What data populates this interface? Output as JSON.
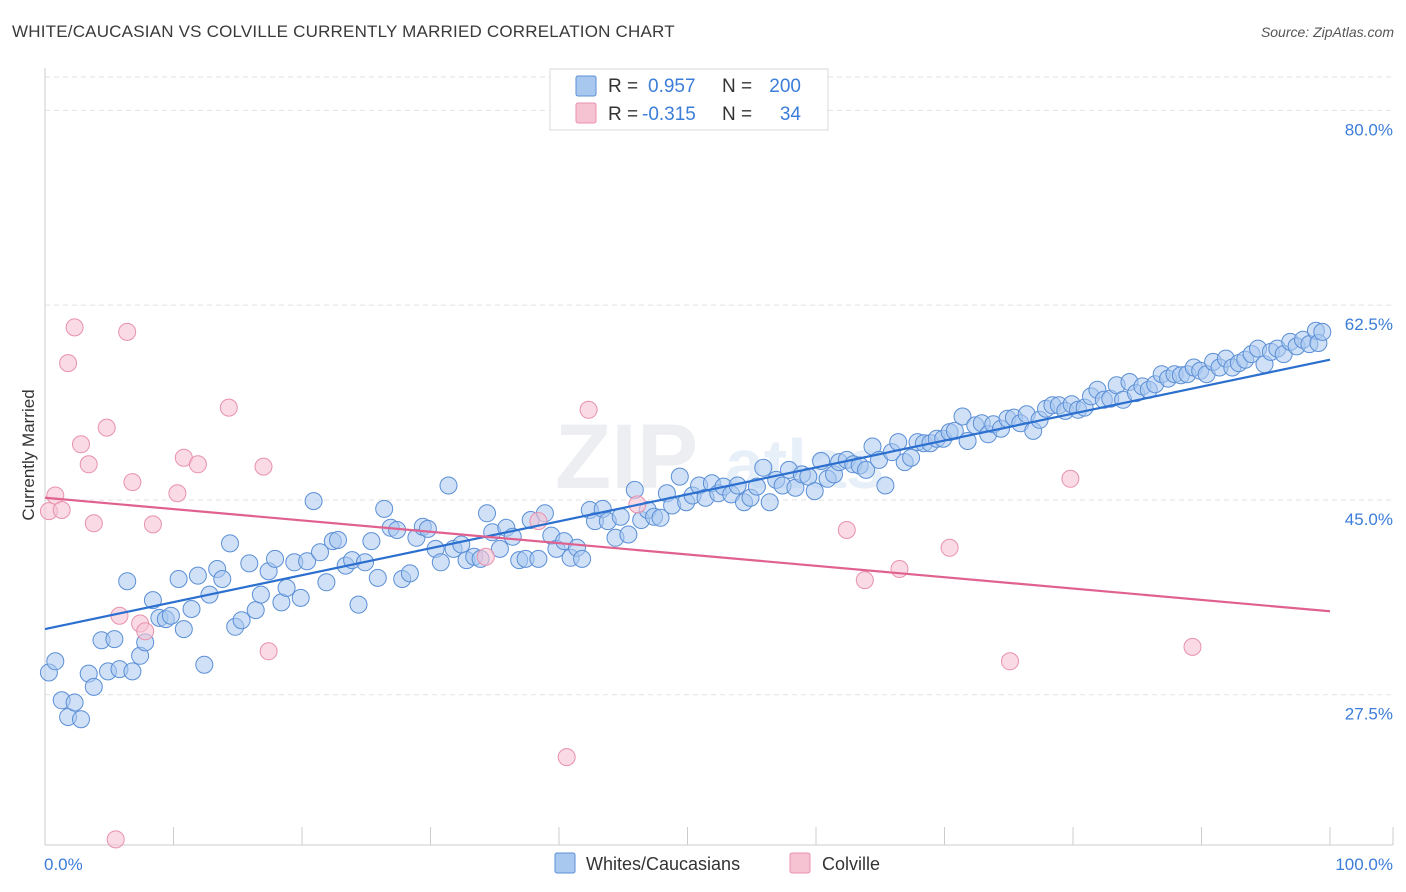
{
  "header": {
    "title": "WHITE/CAUCASIAN VS COLVILLE CURRENTLY MARRIED CORRELATION CHART",
    "source": "Source: ZipAtlas.com"
  },
  "colors": {
    "blue_fill": "#a9c8f0",
    "blue_stroke": "#5b8fd6",
    "blue_line": "#2b6fcf",
    "pink_fill": "#f6c3d3",
    "pink_stroke": "#e891ad",
    "pink_line": "#e0618f",
    "tick_text": "#3b7dd8",
    "grid": "#e2e2e2"
  },
  "legend": {
    "rows": [
      {
        "r_label": "R =",
        "r_value": "0.957",
        "n_label": "N =",
        "n_value": "200"
      },
      {
        "r_label": "R =",
        "r_value": "-0.315",
        "n_label": "N =",
        "n_value": "34"
      }
    ]
  },
  "bottom_legend": {
    "items": [
      "Whites/Caucasians",
      "Colville"
    ]
  },
  "chart_data": {
    "type": "scatter",
    "ylabel": "Currently Married",
    "xlabel": "",
    "xlim": [
      0,
      100
    ],
    "ylim": [
      14,
      83
    ],
    "x_tick_labels": [
      "0.0%",
      "100.0%"
    ],
    "y_ticks": [
      27.5,
      45.0,
      62.5,
      80.0
    ],
    "y_tick_labels": [
      "27.5%",
      "45.0%",
      "62.5%",
      "80.0%"
    ],
    "grid": true,
    "legend_placement": "top-center",
    "series": [
      {
        "name": "Whites/Caucasians",
        "color": "#5b8fd6",
        "trend": {
          "x": [
            0,
            100
          ],
          "y": [
            33.4,
            57.6
          ]
        },
        "points": [
          [
            0.3,
            29.5
          ],
          [
            0.8,
            30.5
          ],
          [
            1.3,
            27.0
          ],
          [
            1.8,
            25.5
          ],
          [
            2.3,
            26.8
          ],
          [
            2.8,
            25.3
          ],
          [
            3.4,
            29.4
          ],
          [
            3.8,
            28.2
          ],
          [
            4.4,
            32.4
          ],
          [
            4.9,
            29.6
          ],
          [
            5.4,
            32.5
          ],
          [
            5.8,
            29.8
          ],
          [
            6.4,
            37.7
          ],
          [
            6.8,
            29.6
          ],
          [
            7.4,
            31.0
          ],
          [
            7.8,
            32.2
          ],
          [
            8.4,
            36.0
          ],
          [
            8.9,
            34.4
          ],
          [
            9.4,
            34.3
          ],
          [
            9.8,
            34.6
          ],
          [
            10.4,
            37.9
          ],
          [
            10.8,
            33.4
          ],
          [
            11.4,
            35.2
          ],
          [
            11.9,
            38.2
          ],
          [
            12.4,
            30.2
          ],
          [
            12.8,
            36.5
          ],
          [
            13.4,
            38.8
          ],
          [
            13.8,
            37.9
          ],
          [
            14.4,
            41.1
          ],
          [
            14.8,
            33.6
          ],
          [
            15.3,
            34.2
          ],
          [
            15.9,
            39.3
          ],
          [
            16.4,
            35.1
          ],
          [
            16.8,
            36.5
          ],
          [
            17.4,
            38.6
          ],
          [
            17.9,
            39.7
          ],
          [
            18.4,
            35.8
          ],
          [
            18.8,
            37.1
          ],
          [
            19.4,
            39.4
          ],
          [
            19.9,
            36.2
          ],
          [
            20.4,
            39.5
          ],
          [
            20.9,
            44.9
          ],
          [
            21.4,
            40.3
          ],
          [
            21.9,
            37.6
          ],
          [
            22.4,
            41.3
          ],
          [
            22.8,
            41.4
          ],
          [
            23.4,
            39.1
          ],
          [
            23.9,
            39.6
          ],
          [
            24.4,
            35.6
          ],
          [
            24.9,
            39.4
          ],
          [
            25.4,
            41.3
          ],
          [
            25.9,
            38.0
          ],
          [
            26.4,
            44.2
          ],
          [
            26.9,
            42.5
          ],
          [
            27.4,
            42.3
          ],
          [
            27.8,
            37.9
          ],
          [
            28.4,
            38.4
          ],
          [
            28.9,
            41.6
          ],
          [
            29.4,
            42.6
          ],
          [
            29.8,
            42.4
          ],
          [
            30.4,
            40.6
          ],
          [
            30.8,
            39.4
          ],
          [
            31.4,
            46.3
          ],
          [
            31.8,
            40.6
          ],
          [
            32.4,
            41.0
          ],
          [
            32.8,
            39.6
          ],
          [
            33.4,
            39.9
          ],
          [
            33.9,
            39.7
          ],
          [
            34.4,
            43.8
          ],
          [
            34.8,
            42.1
          ],
          [
            35.4,
            40.6
          ],
          [
            35.9,
            42.5
          ],
          [
            36.4,
            41.7
          ],
          [
            36.9,
            39.6
          ],
          [
            37.4,
            39.7
          ],
          [
            37.8,
            43.2
          ],
          [
            38.4,
            39.7
          ],
          [
            38.9,
            43.8
          ],
          [
            39.4,
            41.8
          ],
          [
            39.8,
            40.6
          ],
          [
            40.4,
            41.3
          ],
          [
            40.9,
            39.8
          ],
          [
            41.4,
            40.7
          ],
          [
            41.8,
            39.7
          ],
          [
            42.4,
            44.1
          ],
          [
            42.8,
            43.1
          ],
          [
            43.4,
            44.2
          ],
          [
            43.8,
            43.1
          ],
          [
            44.4,
            41.6
          ],
          [
            44.8,
            43.5
          ],
          [
            45.4,
            41.9
          ],
          [
            45.9,
            45.9
          ],
          [
            46.4,
            43.2
          ],
          [
            46.9,
            44.1
          ],
          [
            47.4,
            43.5
          ],
          [
            47.9,
            43.4
          ],
          [
            48.4,
            45.6
          ],
          [
            48.8,
            44.5
          ],
          [
            49.4,
            47.1
          ],
          [
            49.9,
            44.8
          ],
          [
            50.4,
            45.4
          ],
          [
            50.9,
            46.3
          ],
          [
            51.4,
            45.2
          ],
          [
            51.9,
            46.5
          ],
          [
            52.4,
            45.6
          ],
          [
            52.8,
            46.2
          ],
          [
            53.4,
            45.5
          ],
          [
            53.9,
            46.3
          ],
          [
            54.4,
            44.8
          ],
          [
            54.9,
            45.2
          ],
          [
            55.4,
            46.2
          ],
          [
            55.9,
            47.9
          ],
          [
            56.4,
            44.8
          ],
          [
            56.9,
            46.8
          ],
          [
            57.4,
            46.3
          ],
          [
            57.9,
            47.7
          ],
          [
            58.4,
            46.1
          ],
          [
            58.9,
            47.3
          ],
          [
            59.4,
            47.1
          ],
          [
            59.9,
            45.8
          ],
          [
            60.4,
            48.5
          ],
          [
            60.9,
            46.9
          ],
          [
            61.4,
            47.3
          ],
          [
            61.8,
            48.4
          ],
          [
            62.4,
            48.6
          ],
          [
            62.9,
            48.2
          ],
          [
            63.4,
            48.1
          ],
          [
            63.9,
            47.7
          ],
          [
            64.4,
            49.8
          ],
          [
            64.9,
            48.6
          ],
          [
            65.4,
            46.3
          ],
          [
            65.9,
            49.3
          ],
          [
            66.4,
            50.2
          ],
          [
            66.9,
            48.4
          ],
          [
            67.4,
            48.8
          ],
          [
            67.9,
            50.2
          ],
          [
            68.4,
            50.1
          ],
          [
            68.9,
            50.1
          ],
          [
            69.4,
            50.5
          ],
          [
            69.9,
            50.5
          ],
          [
            70.4,
            51.1
          ],
          [
            70.8,
            51.2
          ],
          [
            71.4,
            52.5
          ],
          [
            71.8,
            50.3
          ],
          [
            72.4,
            51.7
          ],
          [
            72.9,
            51.9
          ],
          [
            73.4,
            50.9
          ],
          [
            73.8,
            51.8
          ],
          [
            74.4,
            51.4
          ],
          [
            74.9,
            52.3
          ],
          [
            75.4,
            52.4
          ],
          [
            75.9,
            51.9
          ],
          [
            76.4,
            52.7
          ],
          [
            76.9,
            51.2
          ],
          [
            77.4,
            52.2
          ],
          [
            77.9,
            53.2
          ],
          [
            78.4,
            53.5
          ],
          [
            78.9,
            53.5
          ],
          [
            79.4,
            53.0
          ],
          [
            79.9,
            53.6
          ],
          [
            80.4,
            53.1
          ],
          [
            80.9,
            53.3
          ],
          [
            81.4,
            54.3
          ],
          [
            81.9,
            54.9
          ],
          [
            82.4,
            54.0
          ],
          [
            82.9,
            54.1
          ],
          [
            83.4,
            55.3
          ],
          [
            83.9,
            54.0
          ],
          [
            84.4,
            55.6
          ],
          [
            84.9,
            54.6
          ],
          [
            85.4,
            55.2
          ],
          [
            85.9,
            54.9
          ],
          [
            86.4,
            55.4
          ],
          [
            86.9,
            56.3
          ],
          [
            87.4,
            55.9
          ],
          [
            87.9,
            56.3
          ],
          [
            88.4,
            56.2
          ],
          [
            88.9,
            56.3
          ],
          [
            89.4,
            56.9
          ],
          [
            89.9,
            56.6
          ],
          [
            90.4,
            56.3
          ],
          [
            90.9,
            57.4
          ],
          [
            91.4,
            56.9
          ],
          [
            91.9,
            57.7
          ],
          [
            92.4,
            56.9
          ],
          [
            92.9,
            57.3
          ],
          [
            93.4,
            57.6
          ],
          [
            93.9,
            58.1
          ],
          [
            94.4,
            58.6
          ],
          [
            94.9,
            57.2
          ],
          [
            95.4,
            58.3
          ],
          [
            95.9,
            58.6
          ],
          [
            96.4,
            58.1
          ],
          [
            96.9,
            59.2
          ],
          [
            97.4,
            58.8
          ],
          [
            97.9,
            59.4
          ],
          [
            98.4,
            59.0
          ],
          [
            98.9,
            60.2
          ],
          [
            99.1,
            59.1
          ],
          [
            99.4,
            60.1
          ]
        ]
      },
      {
        "name": "Colville",
        "color": "#e891ad",
        "trend": {
          "x": [
            0,
            100
          ],
          "y": [
            45.2,
            35.0
          ]
        },
        "points": [
          [
            0.3,
            44.0
          ],
          [
            0.8,
            45.4
          ],
          [
            1.3,
            44.1
          ],
          [
            1.8,
            57.3
          ],
          [
            2.3,
            60.5
          ],
          [
            2.8,
            50.0
          ],
          [
            3.4,
            48.2
          ],
          [
            3.8,
            42.9
          ],
          [
            4.8,
            51.5
          ],
          [
            5.5,
            14.5
          ],
          [
            5.8,
            34.6
          ],
          [
            6.4,
            60.1
          ],
          [
            6.8,
            46.6
          ],
          [
            7.4,
            33.9
          ],
          [
            7.8,
            33.2
          ],
          [
            8.4,
            42.8
          ],
          [
            10.3,
            45.6
          ],
          [
            10.8,
            48.8
          ],
          [
            11.9,
            48.2
          ],
          [
            14.3,
            53.3
          ],
          [
            17.0,
            48.0
          ],
          [
            17.4,
            31.4
          ],
          [
            34.3,
            39.9
          ],
          [
            38.4,
            43.1
          ],
          [
            40.6,
            21.9
          ],
          [
            42.3,
            53.1
          ],
          [
            46.1,
            44.6
          ],
          [
            62.4,
            42.3
          ],
          [
            63.8,
            37.8
          ],
          [
            66.5,
            38.8
          ],
          [
            70.4,
            40.7
          ],
          [
            75.1,
            30.5
          ],
          [
            79.8,
            46.9
          ],
          [
            89.3,
            31.8
          ]
        ]
      }
    ]
  }
}
